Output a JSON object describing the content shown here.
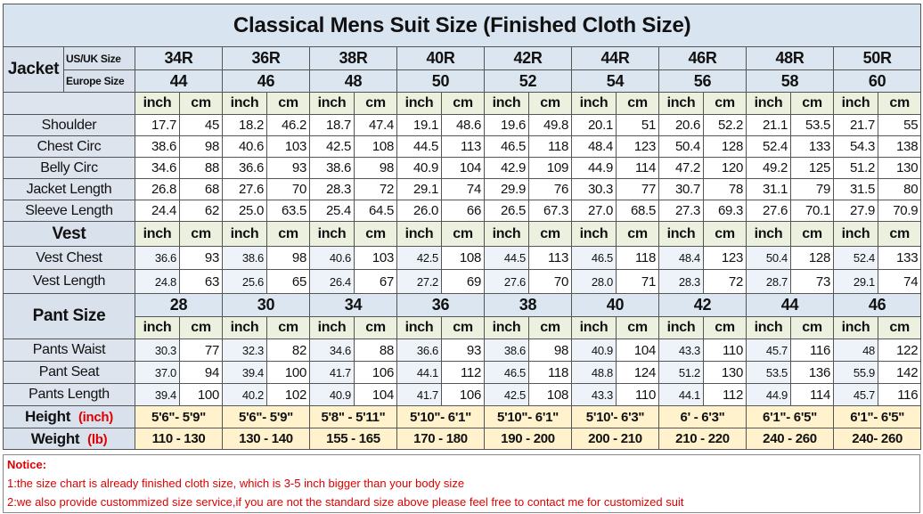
{
  "title": "Classical Mens Suit Size (Finished Cloth Size)",
  "units": [
    "inch",
    "cm"
  ],
  "jacket": {
    "label": "Jacket",
    "us_label": "US/UK Size",
    "eu_label": "Europe Size",
    "us_sizes": [
      "34R",
      "36R",
      "38R",
      "40R",
      "42R",
      "44R",
      "46R",
      "48R",
      "50R"
    ],
    "eu_sizes": [
      44,
      46,
      48,
      50,
      52,
      54,
      56,
      58,
      60
    ],
    "rows": [
      {
        "label": "Shoulder",
        "values": [
          [
            "17.7",
            "45"
          ],
          [
            "18.2",
            "46.2"
          ],
          [
            "18.7",
            "47.4"
          ],
          [
            "19.1",
            "48.6"
          ],
          [
            "19.6",
            "49.8"
          ],
          [
            "20.1",
            "51"
          ],
          [
            "20.6",
            "52.2"
          ],
          [
            "21.1",
            "53.5"
          ],
          [
            "21.7",
            "55"
          ]
        ]
      },
      {
        "label": "Chest Circ",
        "values": [
          [
            "38.6",
            "98"
          ],
          [
            "40.6",
            "103"
          ],
          [
            "42.5",
            "108"
          ],
          [
            "44.5",
            "113"
          ],
          [
            "46.5",
            "118"
          ],
          [
            "48.4",
            "123"
          ],
          [
            "50.4",
            "128"
          ],
          [
            "52.4",
            "133"
          ],
          [
            "54.3",
            "138"
          ]
        ]
      },
      {
        "label": "Belly Circ",
        "values": [
          [
            "34.6",
            "88"
          ],
          [
            "36.6",
            "93"
          ],
          [
            "38.6",
            "98"
          ],
          [
            "40.9",
            "104"
          ],
          [
            "42.9",
            "109"
          ],
          [
            "44.9",
            "114"
          ],
          [
            "47.2",
            "120"
          ],
          [
            "49.2",
            "125"
          ],
          [
            "51.2",
            "130"
          ]
        ]
      },
      {
        "label": "Jacket Length",
        "values": [
          [
            "26.8",
            "68"
          ],
          [
            "27.6",
            "70"
          ],
          [
            "28.3",
            "72"
          ],
          [
            "29.1",
            "74"
          ],
          [
            "29.9",
            "76"
          ],
          [
            "30.3",
            "77"
          ],
          [
            "30.7",
            "78"
          ],
          [
            "31.1",
            "79"
          ],
          [
            "31.5",
            "80"
          ]
        ]
      },
      {
        "label": "Sleeve Length",
        "values": [
          [
            "24.4",
            "62"
          ],
          [
            "25.0",
            "63.5"
          ],
          [
            "25.4",
            "64.5"
          ],
          [
            "26.0",
            "66"
          ],
          [
            "26.5",
            "67.3"
          ],
          [
            "27.0",
            "68.5"
          ],
          [
            "27.3",
            "69.3"
          ],
          [
            "27.6",
            "70.1"
          ],
          [
            "27.9",
            "70.9"
          ]
        ]
      }
    ]
  },
  "vest": {
    "label": "Vest",
    "rows": [
      {
        "label": "Vest Chest",
        "values": [
          [
            "36.6",
            "93"
          ],
          [
            "38.6",
            "98"
          ],
          [
            "40.6",
            "103"
          ],
          [
            "42.5",
            "108"
          ],
          [
            "44.5",
            "113"
          ],
          [
            "46.5",
            "118"
          ],
          [
            "48.4",
            "123"
          ],
          [
            "50.4",
            "128"
          ],
          [
            "52.4",
            "133"
          ]
        ]
      },
      {
        "label": "Vest Length",
        "values": [
          [
            "24.8",
            "63"
          ],
          [
            "25.6",
            "65"
          ],
          [
            "26.4",
            "67"
          ],
          [
            "27.2",
            "69"
          ],
          [
            "27.6",
            "70"
          ],
          [
            "28.0",
            "71"
          ],
          [
            "28.3",
            "72"
          ],
          [
            "28.7",
            "73"
          ],
          [
            "29.1",
            "74"
          ]
        ]
      }
    ]
  },
  "pants": {
    "label": "Pant Size",
    "sizes": [
      28,
      30,
      34,
      36,
      38,
      40,
      42,
      44,
      46
    ],
    "rows": [
      {
        "label": "Pants Waist",
        "values": [
          [
            "30.3",
            "77"
          ],
          [
            "32.3",
            "82"
          ],
          [
            "34.6",
            "88"
          ],
          [
            "36.6",
            "93"
          ],
          [
            "38.6",
            "98"
          ],
          [
            "40.9",
            "104"
          ],
          [
            "43.3",
            "110"
          ],
          [
            "45.7",
            "116"
          ],
          [
            "48",
            "122"
          ]
        ]
      },
      {
        "label": "Pant Seat",
        "values": [
          [
            "37.0",
            "94"
          ],
          [
            "39.4",
            "100"
          ],
          [
            "41.7",
            "106"
          ],
          [
            "44.1",
            "112"
          ],
          [
            "46.5",
            "118"
          ],
          [
            "48.8",
            "124"
          ],
          [
            "51.2",
            "130"
          ],
          [
            "53.5",
            "136"
          ],
          [
            "55.9",
            "142"
          ]
        ]
      },
      {
        "label": "Pants Length",
        "values": [
          [
            "39.4",
            "100"
          ],
          [
            "40.2",
            "102"
          ],
          [
            "40.9",
            "104"
          ],
          [
            "41.7",
            "106"
          ],
          [
            "42.5",
            "108"
          ],
          [
            "43.3",
            "110"
          ],
          [
            "44.1",
            "112"
          ],
          [
            "44.9",
            "114"
          ],
          [
            "45.7",
            "116"
          ]
        ]
      }
    ]
  },
  "height": {
    "label": "Height",
    "unit": "(inch)",
    "values": [
      "5'6\"- 5'9\"",
      "5'6\"- 5'9\"",
      "5'8\" - 5'11\"",
      "5'10\"- 6'1\"",
      "5'10\"- 6'1\"",
      "5'10'- 6'3\"",
      "6' - 6'3\"",
      "6'1\"- 6'5\"",
      "6'1\"- 6'5\""
    ]
  },
  "weight": {
    "label": "Weight",
    "unit": "(lb)",
    "values": [
      "110 - 130",
      "130 - 140",
      "155 - 165",
      "170 - 180",
      "190 - 200",
      "200 - 210",
      "210 - 220",
      "240 - 260",
      "240- 260"
    ]
  },
  "notice": {
    "title": "Notice:",
    "lines": [
      "1:the size chart is already finished cloth size, which is 3-5 inch bigger than your body size",
      "2:we also provide custommized size service,if you are not the standard size above please feel free to contact me for customized suit"
    ]
  }
}
